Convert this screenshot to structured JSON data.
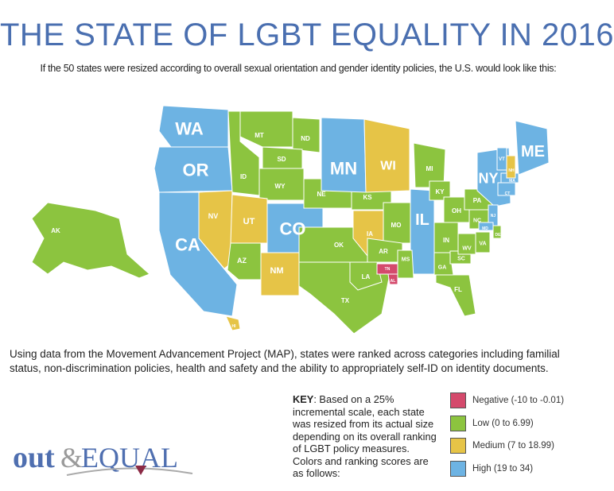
{
  "title": "THE STATE OF LGBT EQUALITY IN 2016",
  "subtitle": "If the 50 states were resized according to overall sexual orientation and gender identity policies, the U.S. would look like this:",
  "description": "Using data from the Movement Advancement Project (MAP), states were ranked across categories including familial status, non-discrimination policies, health and safety and the ability to appropriately self-ID on identity documents.",
  "key": {
    "label": "KEY",
    "text": ": Based on a 25% incremental scale, each state was resized from its actual size depending on its overall ranking of LGBT policy measures. Colors and ranking scores are as follows:"
  },
  "legend": [
    {
      "category": "negative",
      "label": "Negative (-10 to -0.01)",
      "color": "#d44a6c"
    },
    {
      "category": "low",
      "label": "Low (0 to 6.99)",
      "color": "#8cc43f"
    },
    {
      "category": "medium",
      "label": "Medium (7 to 18.99)",
      "color": "#e6c447"
    },
    {
      "category": "high",
      "label": "High (19 to 34)",
      "color": "#6db3e3"
    }
  ],
  "states": [
    {
      "abbr": "WA",
      "category": "high"
    },
    {
      "abbr": "OR",
      "category": "high"
    },
    {
      "abbr": "CA",
      "category": "high"
    },
    {
      "abbr": "NV",
      "category": "medium"
    },
    {
      "abbr": "ID",
      "category": "low"
    },
    {
      "abbr": "MT",
      "category": "low"
    },
    {
      "abbr": "ND",
      "category": "low"
    },
    {
      "abbr": "SD",
      "category": "low"
    },
    {
      "abbr": "WY",
      "category": "low"
    },
    {
      "abbr": "UT",
      "category": "medium"
    },
    {
      "abbr": "AZ",
      "category": "low"
    },
    {
      "abbr": "CO",
      "category": "high"
    },
    {
      "abbr": "NM",
      "category": "medium"
    },
    {
      "abbr": "NE",
      "category": "low"
    },
    {
      "abbr": "KS",
      "category": "low"
    },
    {
      "abbr": "OK",
      "category": "low"
    },
    {
      "abbr": "TX",
      "category": "low"
    },
    {
      "abbr": "MN",
      "category": "high"
    },
    {
      "abbr": "IA",
      "category": "medium"
    },
    {
      "abbr": "MO",
      "category": "low"
    },
    {
      "abbr": "AR",
      "category": "low"
    },
    {
      "abbr": "LA",
      "category": "low"
    },
    {
      "abbr": "WI",
      "category": "medium"
    },
    {
      "abbr": "IL",
      "category": "high"
    },
    {
      "abbr": "MS",
      "category": "low"
    },
    {
      "abbr": "TN",
      "category": "negative"
    },
    {
      "abbr": "AL",
      "category": "negative"
    },
    {
      "abbr": "MI",
      "category": "low"
    },
    {
      "abbr": "IN",
      "category": "low"
    },
    {
      "abbr": "KY",
      "category": "low"
    },
    {
      "abbr": "OH",
      "category": "low"
    },
    {
      "abbr": "GA",
      "category": "low"
    },
    {
      "abbr": "FL",
      "category": "low"
    },
    {
      "abbr": "SC",
      "category": "low"
    },
    {
      "abbr": "NC",
      "category": "low"
    },
    {
      "abbr": "VA",
      "category": "low"
    },
    {
      "abbr": "WV",
      "category": "low"
    },
    {
      "abbr": "PA",
      "category": "low"
    },
    {
      "abbr": "NY",
      "category": "high"
    },
    {
      "abbr": "NJ",
      "category": "high"
    },
    {
      "abbr": "MD",
      "category": "high"
    },
    {
      "abbr": "DE",
      "category": "low"
    },
    {
      "abbr": "CT",
      "category": "high"
    },
    {
      "abbr": "MA",
      "category": "high"
    },
    {
      "abbr": "VT",
      "category": "high"
    },
    {
      "abbr": "NH",
      "category": "medium"
    },
    {
      "abbr": "ME",
      "category": "high"
    },
    {
      "abbr": "AK",
      "category": "low"
    },
    {
      "abbr": "HI",
      "category": "medium"
    }
  ],
  "logo": {
    "text": "out&EQUAL",
    "colors": {
      "primary": "#4f6fb0",
      "secondary": "#9a9a9a",
      "accent": "#8b2a45"
    }
  }
}
